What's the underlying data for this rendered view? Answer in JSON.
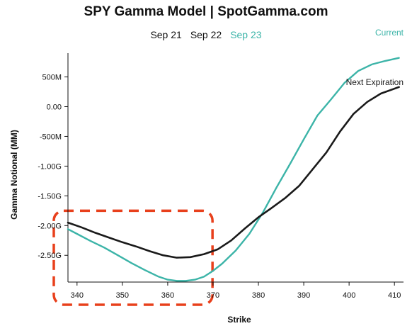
{
  "title": "SPY Gamma Model | SpotGamma.com",
  "tabs": [
    {
      "label": "Sep 21",
      "active": false
    },
    {
      "label": "Sep 22",
      "active": false
    },
    {
      "label": "Sep 23",
      "active": true
    }
  ],
  "colors": {
    "current": "#3cb4a8",
    "next_expiration": "#1a1a1a",
    "highlight": "#e8401c",
    "axis": "#111111"
  },
  "chart_data": {
    "type": "line",
    "title": "SPY Gamma Model | SpotGamma.com",
    "xlabel": "Strike",
    "ylabel": "Gamma Notional (MM)",
    "xlim": [
      338,
      412
    ],
    "ylim": [
      -2.95,
      0.9
    ],
    "x_ticks": [
      340,
      350,
      360,
      370,
      380,
      390,
      400,
      410
    ],
    "x_tick_labels": [
      "340",
      "350",
      "360",
      "370",
      "380",
      "390",
      "400",
      "410"
    ],
    "y_ticks": [
      0.5,
      0.0,
      -0.5,
      -1.0,
      -1.5,
      -2.0,
      -2.5
    ],
    "y_tick_labels": [
      "500M",
      "0.00",
      "-500M",
      "-1.00G",
      "-1.50G",
      "-2.00G",
      "-2.50G"
    ],
    "grid": false,
    "series": [
      {
        "name": "Current",
        "color": "#3cb4a8",
        "x": [
          338,
          340,
          343,
          346,
          349,
          352,
          355,
          358,
          360,
          362,
          364,
          366,
          368,
          370,
          372,
          375,
          378,
          381,
          384,
          387,
          390,
          393,
          396,
          399,
          402,
          405,
          408,
          411
        ],
        "y": [
          -2.06,
          -2.14,
          -2.26,
          -2.37,
          -2.5,
          -2.63,
          -2.75,
          -2.86,
          -2.91,
          -2.93,
          -2.93,
          -2.91,
          -2.86,
          -2.76,
          -2.64,
          -2.42,
          -2.14,
          -1.78,
          -1.36,
          -0.96,
          -0.55,
          -0.15,
          0.12,
          0.4,
          0.6,
          0.71,
          0.77,
          0.82
        ]
      },
      {
        "name": "Next Expiration",
        "color": "#1a1a1a",
        "x": [
          338,
          341,
          344,
          347,
          350,
          353,
          356,
          359,
          362,
          365,
          368,
          371,
          374,
          377,
          380,
          383,
          386,
          389,
          392,
          395,
          398,
          401,
          404,
          407,
          411
        ],
        "y": [
          -1.95,
          -2.03,
          -2.12,
          -2.2,
          -2.28,
          -2.35,
          -2.43,
          -2.5,
          -2.54,
          -2.53,
          -2.48,
          -2.4,
          -2.25,
          -2.05,
          -1.86,
          -1.7,
          -1.53,
          -1.33,
          -1.05,
          -0.77,
          -0.42,
          -0.12,
          0.08,
          0.22,
          0.33
        ]
      }
    ],
    "annotations": [
      "Current",
      "Next Expiration"
    ],
    "highlight_region": {
      "x_range": [
        338,
        368
      ],
      "y_range": [
        -2.95,
        -1.75
      ]
    }
  }
}
